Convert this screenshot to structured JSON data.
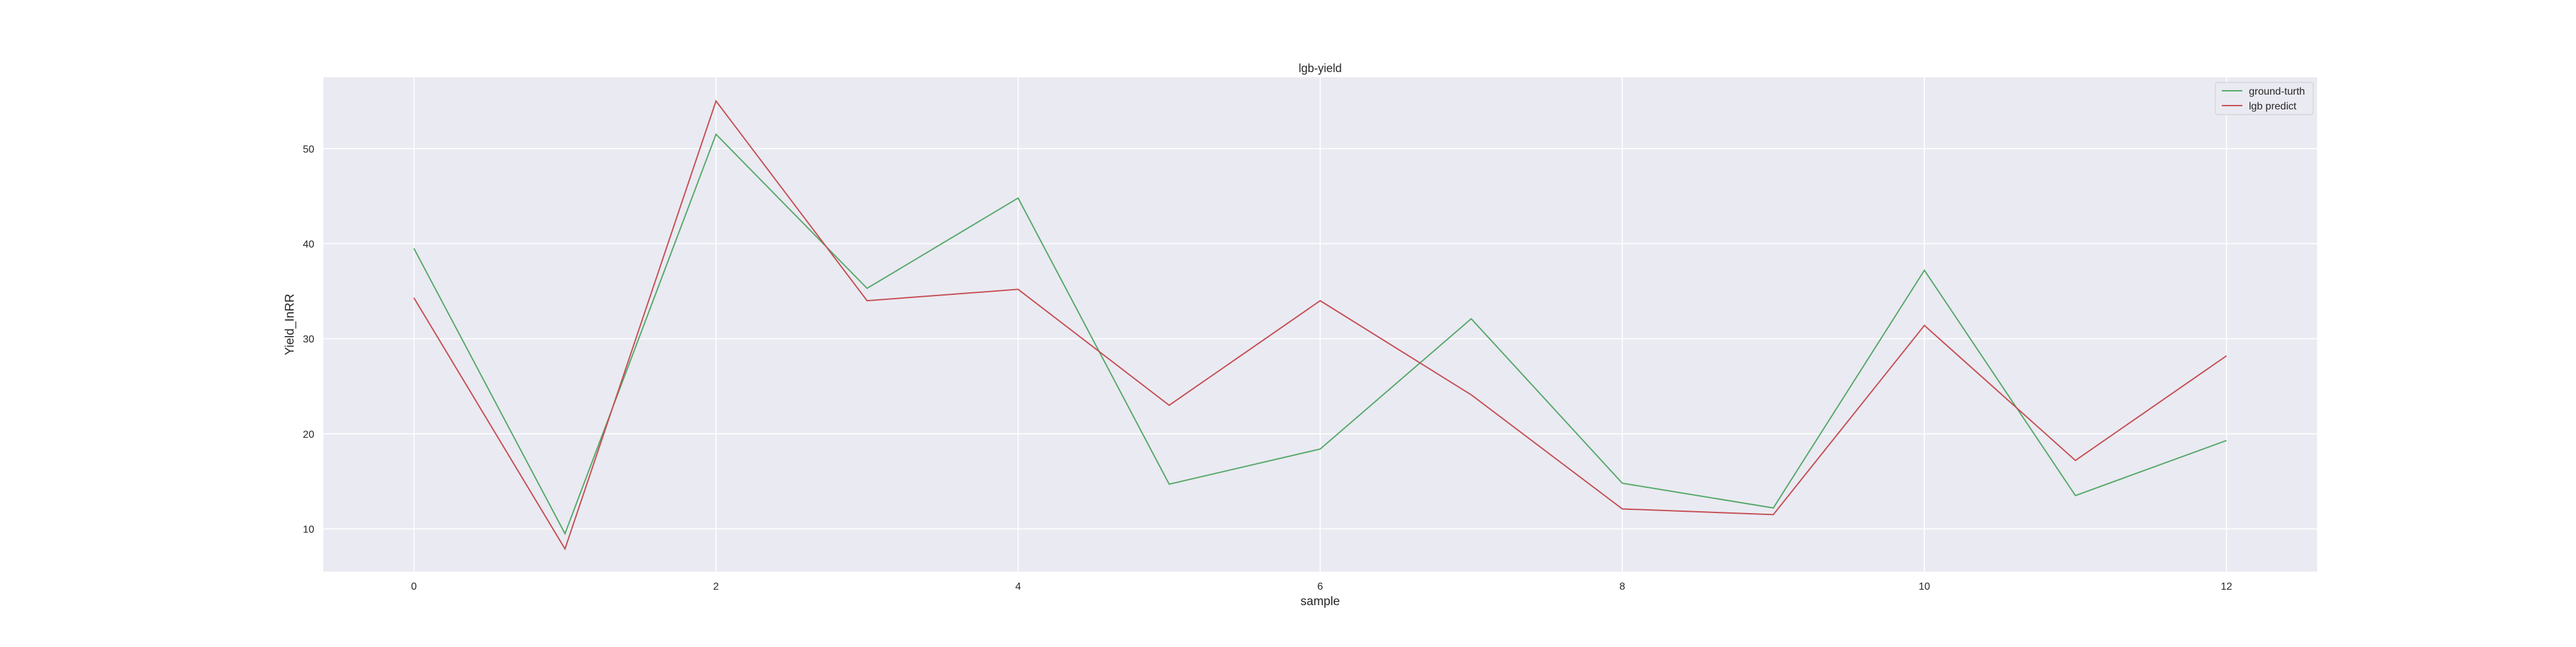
{
  "chart_data": {
    "type": "line",
    "title": "lgb-yield",
    "xlabel": "sample",
    "ylabel": "Yield_InRR",
    "x": [
      0,
      1,
      2,
      3,
      4,
      5,
      6,
      7,
      8,
      9,
      10,
      11,
      12
    ],
    "xticks": [
      0,
      2,
      4,
      6,
      8,
      10,
      12
    ],
    "yticks": [
      10,
      20,
      30,
      40,
      50
    ],
    "xlim": [
      -0.6,
      12.6
    ],
    "ylim": [
      5.5,
      57.5
    ],
    "grid": true,
    "legend_position": "top-right",
    "series": [
      {
        "name": "ground-turth",
        "color": "#55a868",
        "values": [
          39.5,
          9.5,
          51.5,
          35.3,
          44.8,
          14.7,
          18.4,
          32.1,
          14.8,
          12.2,
          37.2,
          13.5,
          19.3
        ]
      },
      {
        "name": "lgb predict",
        "color": "#c44e52",
        "values": [
          34.3,
          7.9,
          55.0,
          34.0,
          35.2,
          23.0,
          34.0,
          24.1,
          12.1,
          11.5,
          31.4,
          17.2,
          28.2
        ]
      }
    ]
  }
}
